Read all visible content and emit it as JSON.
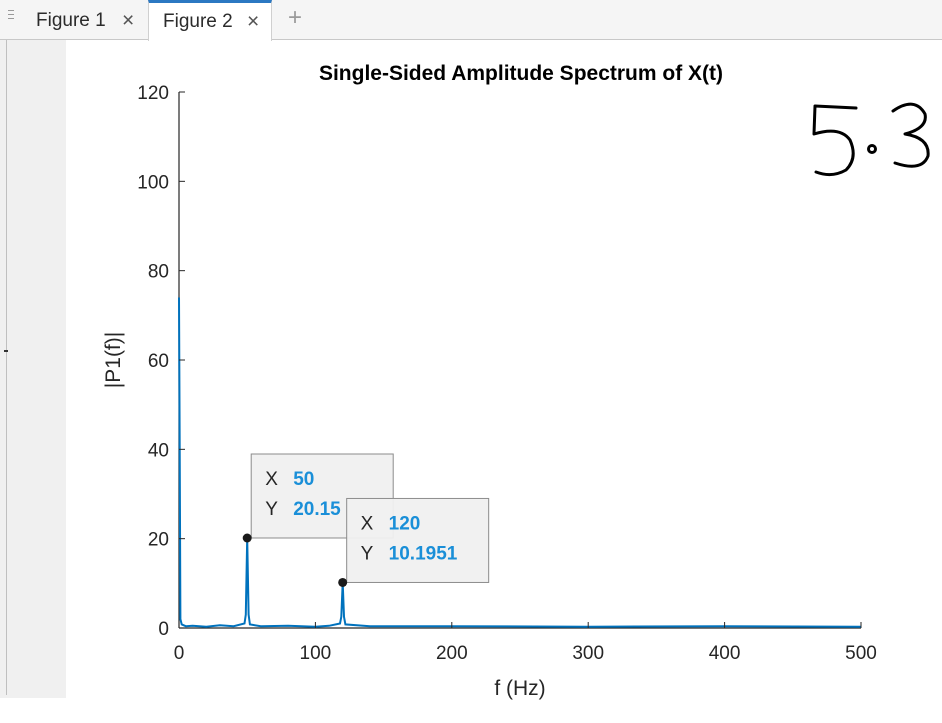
{
  "tabs": [
    {
      "label": "Figure 1",
      "active": false
    },
    {
      "label": "Figure 2",
      "active": true
    }
  ],
  "tab_close_glyph": "×",
  "add_tab_glyph": "+",
  "handwritten_note": "5.3",
  "colors": {
    "line": "#0072bd",
    "datatip_value": "#1a8fd8",
    "axis": "#262626",
    "active_tab": "#2b78c2"
  },
  "icons": [
    "grip-icon",
    "close-icon",
    "plus-icon"
  ],
  "chart_data": {
    "type": "line",
    "title": "Single-Sided Amplitude Spectrum of X(t)",
    "xlabel": "f (Hz)",
    "ylabel": "|P1(f)|",
    "xlim": [
      0,
      500
    ],
    "ylim": [
      0,
      120
    ],
    "xticks": [
      0,
      100,
      200,
      300,
      400,
      500
    ],
    "yticks": [
      0,
      20,
      40,
      60,
      80,
      100,
      120
    ],
    "grid": false,
    "series": [
      {
        "x": [
          0,
          0.5,
          1,
          2,
          5,
          10,
          20,
          30,
          40,
          48,
          49,
          50,
          51,
          52,
          60,
          80,
          100,
          110,
          118,
          119,
          120,
          121,
          122,
          140,
          200,
          300,
          400,
          500
        ],
        "values": [
          74,
          40,
          2,
          0.8,
          0.4,
          0.5,
          0.3,
          0.6,
          0.4,
          1.0,
          3.0,
          20.15,
          3.0,
          0.8,
          0.4,
          0.5,
          0.3,
          0.5,
          1.0,
          2.5,
          10.1951,
          2.5,
          0.8,
          0.4,
          0.4,
          0.3,
          0.4,
          0.3
        ]
      }
    ],
    "datatips": [
      {
        "x_label": "X",
        "x_value": "50",
        "y_label": "Y",
        "y_value": "20.15",
        "x": 50,
        "y": 20.15
      },
      {
        "x_label": "X",
        "x_value": "120",
        "y_label": "Y",
        "y_value": "10.1951",
        "x": 120,
        "y": 10.1951
      }
    ]
  }
}
